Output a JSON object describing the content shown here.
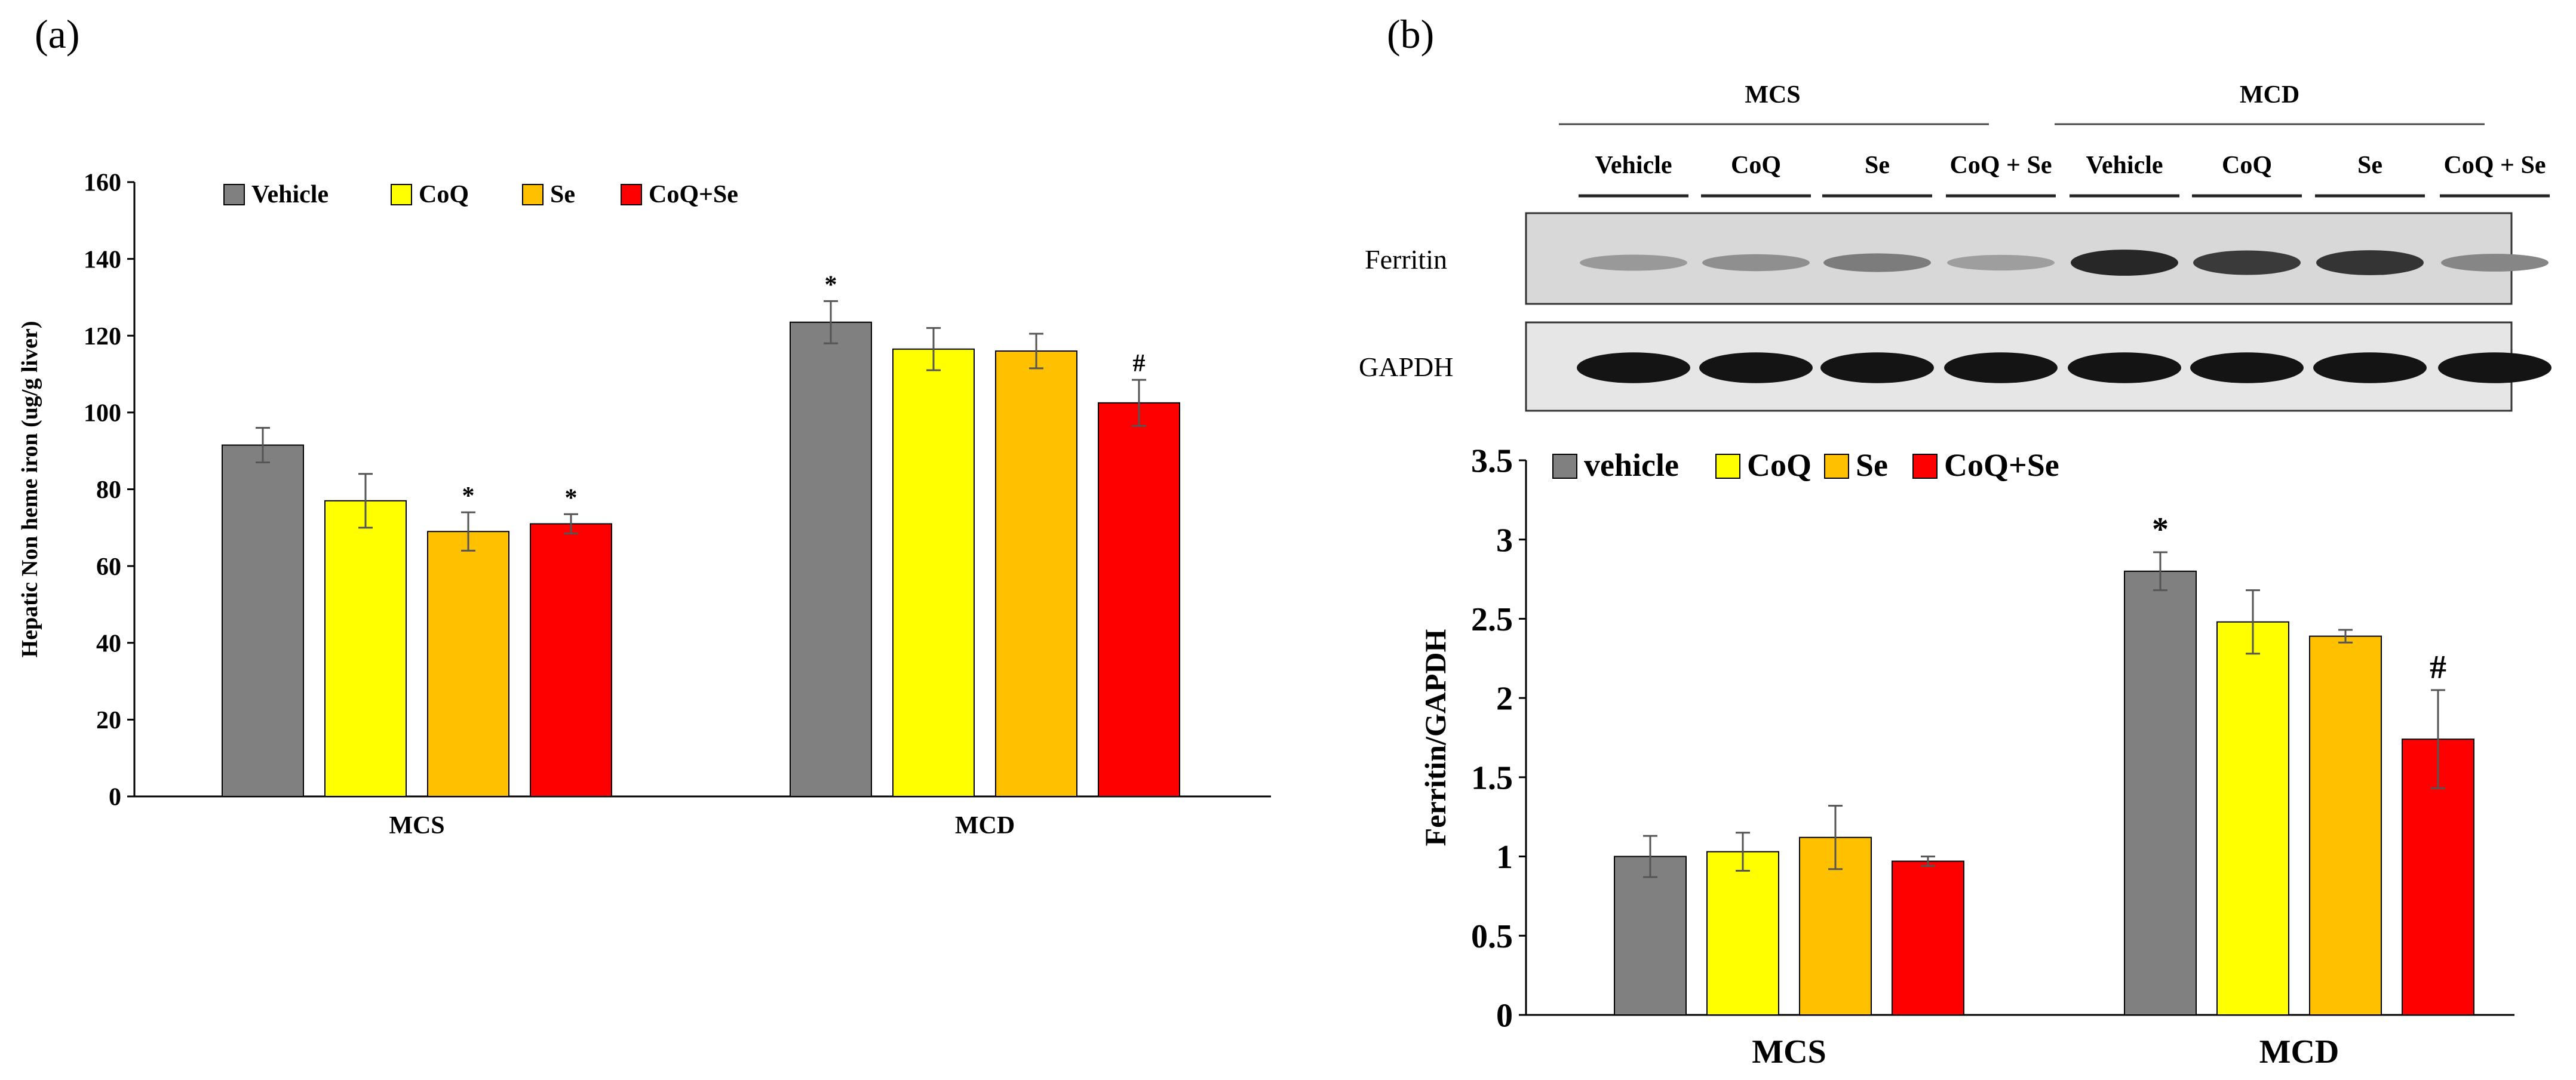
{
  "figure": {
    "panel_a_label": "(a)",
    "panel_b_label": "(b)"
  },
  "colors": {
    "Vehicle": "#808080",
    "CoQ": "#FFFF00",
    "Se": "#FFC000",
    "CoQ+Se": "#FF0000"
  },
  "blot": {
    "group_labels": [
      "MCS",
      "MCD"
    ],
    "lane_labels": [
      "Vehicle",
      "CoQ",
      "Se",
      "CoQ + Se",
      "Vehicle",
      "CoQ",
      "Se",
      "CoQ + Se"
    ],
    "row_labels": [
      "Ferritin",
      "GAPDH"
    ],
    "ferritin_intensity": [
      0.25,
      0.3,
      0.4,
      0.22,
      0.85,
      0.75,
      0.78,
      0.35
    ],
    "gapdh_intensity": [
      0.95,
      0.95,
      0.95,
      0.95,
      0.95,
      0.95,
      0.95,
      0.95
    ]
  },
  "chart_data": [
    {
      "type": "bar",
      "panel": "a",
      "title": "",
      "xlabel": "",
      "ylabel": "Hepatic Non heme iron (ug/g liver)",
      "ylim": [
        0,
        160
      ],
      "yticks": [
        0,
        20,
        40,
        60,
        80,
        100,
        120,
        140,
        160
      ],
      "legend_position": "top-left",
      "categories": [
        "MCS",
        "MCD"
      ],
      "series": [
        {
          "name": "Vehicle",
          "values": [
            91.5,
            123.5
          ],
          "errors": [
            4.5,
            5.5
          ],
          "annotations": [
            "",
            "*"
          ]
        },
        {
          "name": "CoQ",
          "values": [
            77,
            116.5
          ],
          "errors": [
            7,
            5.5
          ],
          "annotations": [
            "",
            ""
          ]
        },
        {
          "name": "Se",
          "values": [
            69,
            116
          ],
          "errors": [
            5,
            4.5
          ],
          "annotations": [
            "*",
            ""
          ]
        },
        {
          "name": "CoQ+Se",
          "values": [
            71,
            102.5
          ],
          "errors": [
            2.5,
            6
          ],
          "annotations": [
            "*",
            "#"
          ]
        }
      ]
    },
    {
      "type": "bar",
      "panel": "b",
      "title": "",
      "xlabel": "",
      "ylabel": "Ferritin/GAPDH",
      "ylim": [
        0,
        3.5
      ],
      "yticks": [
        0,
        0.5,
        1,
        1.5,
        2,
        2.5,
        3,
        3.5
      ],
      "legend_position": "top-left",
      "categories": [
        "MCS",
        "MCD"
      ],
      "series": [
        {
          "name": "vehicle",
          "values": [
            1.0,
            2.8
          ],
          "errors": [
            0.13,
            0.12
          ],
          "annotations": [
            "",
            "*"
          ]
        },
        {
          "name": "CoQ",
          "values": [
            1.03,
            2.48
          ],
          "errors": [
            0.12,
            0.2
          ],
          "annotations": [
            "",
            ""
          ]
        },
        {
          "name": "Se",
          "values": [
            1.12,
            2.39
          ],
          "errors": [
            0.2,
            0.04
          ],
          "annotations": [
            "",
            ""
          ]
        },
        {
          "name": "CoQ+Se",
          "values": [
            0.97,
            1.74
          ],
          "errors": [
            0.03,
            0.31
          ],
          "annotations": [
            "",
            "#"
          ]
        }
      ]
    }
  ]
}
